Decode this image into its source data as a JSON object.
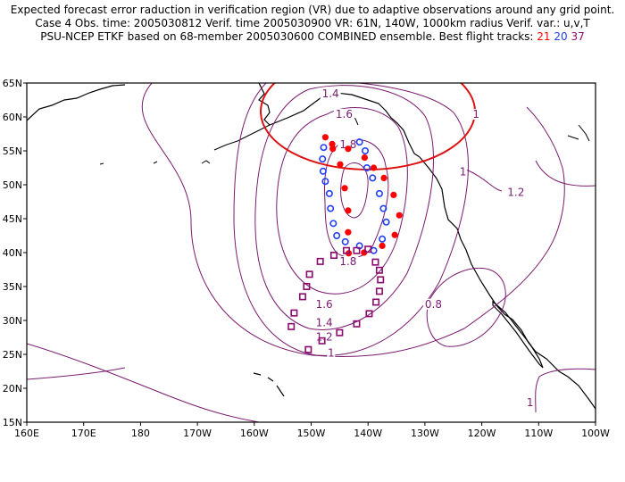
{
  "header": {
    "line1": "Expected forecast error raduction in verification region (VR) due to adaptive observations around any grid point.",
    "line2": "Case 4  Obs. time: 2005030812  Verif. time 2005030900  VR: 61N, 140W, 1000km radius  Verif. var.: u,v,T",
    "line3_prefix": "PSU-NCEP ETKF based on 68-member 2005030600 COMBINED ensemble.  Best flight tracks:",
    "track_21": "21",
    "track_20": "20",
    "track_37": "37"
  },
  "axes": {
    "lat_labels": [
      "65N",
      "60N",
      "55N",
      "50N",
      "45N",
      "40N",
      "35N",
      "30N",
      "25N",
      "20N",
      "15N"
    ],
    "lon_labels": [
      "160E",
      "170E",
      "180",
      "170W",
      "160W",
      "150W",
      "140W",
      "130W",
      "120W",
      "110W",
      "100W"
    ],
    "lat_range": [
      15,
      65
    ],
    "lon_range_east": [
      160,
      260
    ]
  },
  "colors": {
    "contour": "#7a1b6f",
    "track_21": "#ff0000",
    "track_20": "#1f3fff",
    "track_37": "#8b0a6e",
    "verification_circle": "#dd1111"
  },
  "contour_labels": [
    {
      "text": "1.4",
      "lon": 213.4,
      "lat": 63.0
    },
    {
      "text": "1.6",
      "lon": 215.8,
      "lat": 60.0
    },
    {
      "text": "1.8",
      "lon": 216.5,
      "lat": 55.5
    },
    {
      "text": "1.8",
      "lon": 216.5,
      "lat": 38.3
    },
    {
      "text": "1.6",
      "lon": 212.3,
      "lat": 32.0
    },
    {
      "text": "1.4",
      "lon": 212.3,
      "lat": 29.3
    },
    {
      "text": "1.2",
      "lon": 212.3,
      "lat": 27.2
    },
    {
      "text": "1",
      "lon": 213.5,
      "lat": 24.8
    },
    {
      "text": "1",
      "lon": 239.0,
      "lat": 60.0
    },
    {
      "text": "1",
      "lon": 236.7,
      "lat": 51.5
    },
    {
      "text": "1.2",
      "lon": 246.0,
      "lat": 48.5
    },
    {
      "text": "0.8",
      "lon": 231.5,
      "lat": 32.0
    },
    {
      "text": "1",
      "lon": 248.5,
      "lat": 17.5
    }
  ],
  "verification_region": {
    "lat": 61,
    "lon_w": 140,
    "radius_km": 1000
  },
  "tracks": [
    {
      "id": "21",
      "marker": "dot",
      "points": [
        [
          212.5,
          57.0
        ],
        [
          213.8,
          55.3
        ],
        [
          215.1,
          53.0
        ],
        [
          215.9,
          49.5
        ],
        [
          216.5,
          46.2
        ],
        [
          216.5,
          43.0
        ],
        [
          216.6,
          39.9
        ],
        [
          219.3,
          40.0
        ],
        [
          222.5,
          41.0
        ],
        [
          224.7,
          42.6
        ],
        [
          225.5,
          45.5
        ],
        [
          224.5,
          48.5
        ],
        [
          222.8,
          51.0
        ],
        [
          221.0,
          52.5
        ],
        [
          219.4,
          54.0
        ],
        [
          216.5,
          55.3
        ],
        [
          213.7,
          56.0
        ]
      ]
    },
    {
      "id": "20",
      "marker": "circle",
      "points": [
        [
          218.5,
          56.3
        ],
        [
          219.5,
          55.0
        ],
        [
          219.8,
          52.5
        ],
        [
          220.8,
          51.0
        ],
        [
          222.0,
          48.7
        ],
        [
          222.7,
          46.5
        ],
        [
          223.2,
          44.5
        ],
        [
          222.5,
          42.0
        ],
        [
          221.0,
          40.3
        ],
        [
          218.5,
          41.0
        ],
        [
          216.0,
          41.6
        ],
        [
          214.5,
          42.5
        ],
        [
          213.9,
          44.3
        ],
        [
          213.4,
          46.5
        ],
        [
          213.2,
          48.7
        ],
        [
          212.5,
          50.5
        ],
        [
          212.1,
          52.0
        ],
        [
          212.0,
          53.8
        ],
        [
          212.2,
          55.5
        ]
      ]
    },
    {
      "id": "37",
      "marker": "square",
      "points": [
        [
          218.0,
          40.3
        ],
        [
          220.0,
          40.5
        ],
        [
          221.3,
          38.6
        ],
        [
          222.0,
          37.4
        ],
        [
          222.2,
          36.0
        ],
        [
          222.0,
          34.3
        ],
        [
          221.4,
          32.7
        ],
        [
          220.2,
          31.0
        ],
        [
          218.0,
          29.5
        ],
        [
          215.0,
          28.2
        ],
        [
          211.9,
          27.0
        ],
        [
          209.5,
          25.7
        ],
        [
          206.5,
          29.1
        ],
        [
          207.0,
          31.1
        ],
        [
          208.5,
          33.5
        ],
        [
          209.2,
          35.0
        ],
        [
          209.7,
          36.8
        ],
        [
          211.6,
          38.7
        ],
        [
          214.0,
          39.6
        ],
        [
          216.2,
          40.3
        ]
      ]
    }
  ]
}
